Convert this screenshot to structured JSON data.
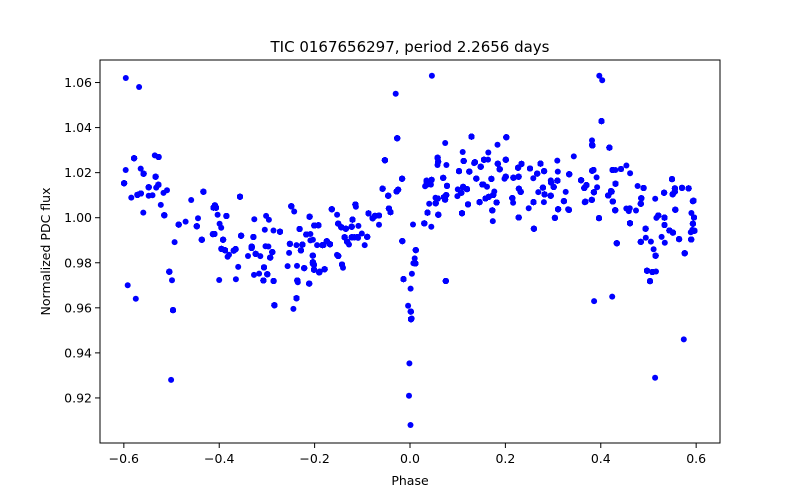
{
  "chart_data": {
    "type": "scatter",
    "title": "TIC 0167656297, period 2.2656 days",
    "xlabel": "Phase",
    "ylabel": "Normalized PDC flux",
    "xlim": [
      -0.65,
      0.65
    ],
    "ylim": [
      0.9,
      1.07
    ],
    "xticks": [
      -0.6,
      -0.4,
      -0.2,
      0.0,
      0.2,
      0.4,
      0.6
    ],
    "xtick_labels": [
      "−0.6",
      "−0.4",
      "−0.2",
      "0.0",
      "0.2",
      "0.4",
      "0.6"
    ],
    "yticks": [
      0.92,
      0.94,
      0.96,
      0.98,
      1.0,
      1.02,
      1.04,
      1.06
    ],
    "ytick_labels": [
      "0.92",
      "0.94",
      "0.96",
      "0.98",
      "1.00",
      "1.02",
      "1.04",
      "1.06"
    ],
    "grid": false,
    "marker_color": "#0000ff",
    "x_range": [
      -0.6,
      0.6
    ],
    "mean_flux_profile": {
      "phase": [
        -0.6,
        -0.55,
        -0.51,
        -0.5,
        -0.49,
        -0.45,
        -0.4,
        -0.3,
        -0.2,
        -0.1,
        -0.05,
        -0.02,
        0.0,
        0.02,
        0.05,
        0.1,
        0.2,
        0.3,
        0.4,
        0.45,
        0.49,
        0.5,
        0.51,
        0.55,
        0.6
      ],
      "flux": [
        1.01,
        1.015,
        1.008,
        0.955,
        0.99,
        0.995,
        0.992,
        0.985,
        0.99,
        0.997,
        1.01,
        1.02,
        0.955,
        1.005,
        1.012,
        1.015,
        1.018,
        1.018,
        1.015,
        1.012,
        1.005,
        0.955,
        0.99,
        1.005,
        1.0
      ]
    },
    "scatter_half_width": 0.025,
    "outliers": [
      {
        "x": -0.596,
        "y": 1.062
      },
      {
        "x": -0.592,
        "y": 0.97
      },
      {
        "x": -0.575,
        "y": 0.964
      },
      {
        "x": -0.568,
        "y": 1.058
      },
      {
        "x": -0.501,
        "y": 0.928
      },
      {
        "x": 0.001,
        "y": 0.908
      },
      {
        "x": -0.002,
        "y": 0.921
      },
      {
        "x": 0.046,
        "y": 1.063
      },
      {
        "x": 0.397,
        "y": 1.063
      },
      {
        "x": 0.403,
        "y": 1.061
      },
      {
        "x": 0.514,
        "y": 0.929
      },
      {
        "x": 0.386,
        "y": 0.963
      },
      {
        "x": 0.424,
        "y": 0.965
      },
      {
        "x": -0.03,
        "y": 1.055
      },
      {
        "x": 0.574,
        "y": 0.946
      }
    ]
  }
}
